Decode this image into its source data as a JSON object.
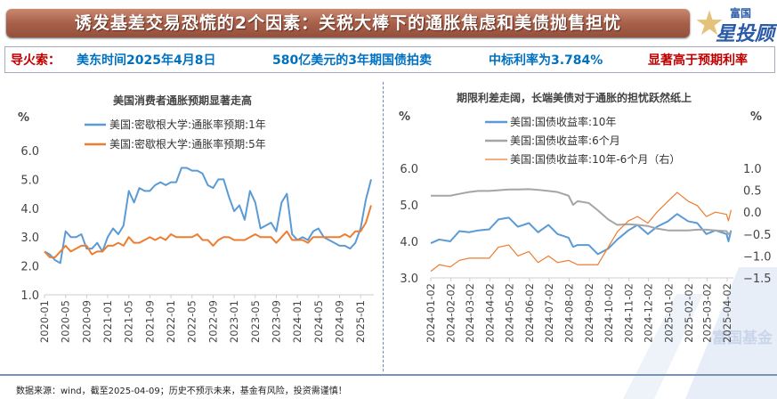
{
  "banner": {
    "title": "诱发基差交易恐慌的2个因素：关税大棒下的通胀焦虑和美债抛售担忧"
  },
  "logo": {
    "text_top": "富国",
    "text_main": "星投顾",
    "watermark": "富国基金"
  },
  "info": {
    "label": "导火索：",
    "time": "美东时间2025年4月8日",
    "auction": "580亿美元的3年期国债拍卖",
    "rate": "中标利率为3.784%",
    "conclusion": "显著高于预期利率",
    "label_color": "#c00000",
    "text_color": "#0070c0"
  },
  "footer": "数据来源：wind，截至2025-04-09；历史不预示未来，基金有风险，投资需谨慎！",
  "chart_data": [
    {
      "type": "line",
      "title": "美国消费者通胀预期显著走高",
      "ylabel": "%",
      "ylim": [
        1.0,
        6.0
      ],
      "yticks": [
        "1.0",
        "2.0",
        "3.0",
        "4.0",
        "5.0",
        "6.0"
      ],
      "legend": "top",
      "xticks": [
        "2020-01",
        "2020-05",
        "2020-09",
        "2021-01",
        "2021-05",
        "2021-09",
        "2022-01",
        "2022-05",
        "2022-09",
        "2023-01",
        "2023-05",
        "2023-09",
        "2024-01",
        "2024-05",
        "2024-09",
        "2025-01"
      ],
      "x_start": "2020-01",
      "x_end": "2025-03",
      "x_freq": "monthly",
      "series": [
        {
          "name": "美国:密歇根大学:通胀率预期:1年",
          "color": "#5b9bd5",
          "values": [
            2.5,
            2.4,
            2.2,
            2.1,
            3.2,
            3.0,
            3.0,
            3.1,
            2.6,
            2.6,
            2.8,
            2.5,
            3.0,
            3.3,
            3.1,
            3.4,
            4.6,
            4.2,
            4.7,
            4.6,
            4.6,
            4.8,
            4.9,
            4.8,
            4.9,
            4.9,
            5.4,
            5.4,
            5.3,
            5.3,
            5.2,
            4.8,
            4.7,
            5.0,
            5.0,
            4.4,
            3.9,
            4.1,
            3.6,
            4.6,
            4.2,
            3.3,
            3.4,
            3.5,
            3.2,
            4.2,
            4.5,
            3.1,
            2.9,
            3.0,
            2.9,
            3.2,
            3.3,
            3.0,
            2.9,
            2.8,
            2.7,
            2.7,
            2.6,
            2.8,
            3.3,
            4.3,
            5.0
          ]
        },
        {
          "name": "美国:密歇根大学:通胀率预期:5年",
          "color": "#ed7d31",
          "values": [
            2.5,
            2.3,
            2.3,
            2.5,
            2.7,
            2.5,
            2.6,
            2.7,
            2.7,
            2.4,
            2.5,
            2.5,
            2.7,
            2.7,
            2.8,
            2.7,
            3.0,
            2.8,
            2.8,
            2.9,
            3.0,
            2.9,
            3.0,
            2.9,
            3.1,
            3.0,
            3.0,
            3.0,
            3.0,
            3.1,
            2.9,
            2.9,
            2.7,
            2.9,
            3.0,
            3.0,
            2.9,
            2.9,
            2.9,
            3.0,
            3.1,
            3.0,
            3.0,
            3.0,
            2.8,
            3.0,
            3.2,
            2.9,
            2.9,
            2.9,
            2.8,
            3.0,
            3.0,
            3.0,
            3.0,
            3.0,
            3.0,
            3.1,
            3.0,
            3.2,
            3.2,
            3.5,
            4.1
          ]
        }
      ]
    },
    {
      "type": "line",
      "title": "期限利差走阔，长端美债对于通胀的担忧跃然纸上",
      "ylabel": "%",
      "y2label": "%",
      "ylim": [
        3.0,
        6.0
      ],
      "y2lim": [
        -1.5,
        1.0
      ],
      "yticks": [
        "3.0",
        "4.0",
        "5.0",
        "6.0"
      ],
      "y2ticks": [
        "-1.5",
        "-1.0",
        "-0.5",
        "0.0",
        "0.5",
        "1.0"
      ],
      "legend": "top",
      "xticks": [
        "2024-01-02",
        "2024-02-02",
        "2024-03-02",
        "2024-04-02",
        "2024-05-02",
        "2024-06-02",
        "2024-07-02",
        "2024-08-02",
        "2024-09-02",
        "2024-10-02",
        "2024-11-02",
        "2024-12-02",
        "2025-01-02",
        "2025-02-02",
        "2025-03-02",
        "2025-04-02"
      ],
      "x": [
        "2024-01-02",
        "2024-01-15",
        "2024-02-01",
        "2024-02-15",
        "2024-03-01",
        "2024-03-15",
        "2024-04-01",
        "2024-04-15",
        "2024-05-01",
        "2024-05-15",
        "2024-06-01",
        "2024-06-15",
        "2024-07-01",
        "2024-07-15",
        "2024-08-01",
        "2024-08-08",
        "2024-08-15",
        "2024-09-01",
        "2024-09-15",
        "2024-10-01",
        "2024-10-15",
        "2024-11-01",
        "2024-11-15",
        "2024-12-01",
        "2024-12-15",
        "2025-01-01",
        "2025-01-15",
        "2025-02-01",
        "2025-02-15",
        "2025-03-01",
        "2025-03-15",
        "2025-04-01",
        "2025-04-04",
        "2025-04-08"
      ],
      "series": [
        {
          "name": "美国:国债收益率:10年",
          "color": "#5b9bd5",
          "axis": "left",
          "values": [
            3.95,
            4.05,
            4.0,
            4.28,
            4.25,
            4.3,
            4.33,
            4.6,
            4.65,
            4.4,
            4.5,
            4.25,
            4.45,
            4.2,
            4.1,
            3.85,
            3.9,
            3.9,
            3.65,
            3.8,
            4.05,
            4.3,
            4.45,
            4.2,
            4.4,
            4.55,
            4.75,
            4.55,
            4.5,
            4.2,
            4.3,
            4.2,
            4.0,
            4.3
          ]
        },
        {
          "name": "美国:国债收益率:6个月",
          "color": "#a5a5a5",
          "axis": "left",
          "values": [
            5.25,
            5.25,
            5.25,
            5.3,
            5.35,
            5.38,
            5.38,
            5.4,
            5.42,
            5.42,
            5.43,
            5.41,
            5.38,
            5.35,
            5.25,
            5.0,
            5.1,
            5.05,
            4.85,
            4.6,
            4.45,
            4.47,
            4.45,
            4.42,
            4.35,
            4.3,
            4.3,
            4.3,
            4.32,
            4.32,
            4.3,
            4.28,
            4.2,
            4.25
          ]
        },
        {
          "name": "美国:国债收益率:10年-6个月（右）",
          "color": "#ed7d31",
          "axis": "right",
          "values": [
            -1.35,
            -1.2,
            -1.25,
            -1.1,
            -1.05,
            -1.05,
            -1.05,
            -0.8,
            -0.75,
            -1.0,
            -0.9,
            -1.15,
            -1.0,
            -1.15,
            -1.1,
            -1.15,
            -1.2,
            -1.2,
            -1.2,
            -0.8,
            -0.45,
            -0.2,
            -0.1,
            -0.25,
            0.0,
            0.25,
            0.45,
            0.25,
            0.15,
            -0.1,
            0.0,
            -0.05,
            -0.2,
            0.05
          ]
        }
      ]
    }
  ]
}
